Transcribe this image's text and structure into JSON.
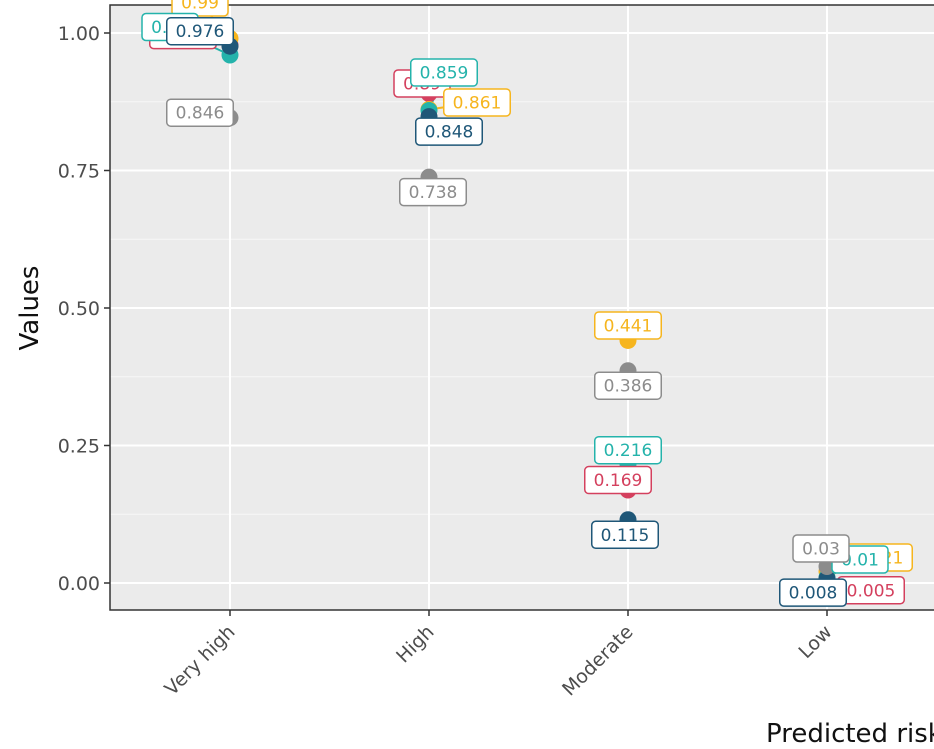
{
  "chart_data": {
    "type": "scatter",
    "xlabel": "Predicted risk",
    "ylabel": "Values",
    "categories": [
      "Very high",
      "High",
      "Moderate",
      "Low"
    ],
    "ylim": [
      -0.05,
      1.05
    ],
    "yticks": [
      "0.00",
      "0.25",
      "0.50",
      "0.75",
      "1.00"
    ],
    "yticks_values": [
      0,
      0.25,
      0.5,
      0.75,
      1
    ],
    "grid": true,
    "legend": "none",
    "series": [
      {
        "color": "#d4405e",
        "values": [
          0.978,
          0.89,
          0.169,
          0.005
        ],
        "labels": [
          "0.978",
          "0.89",
          "0.169",
          "0.005"
        ]
      },
      {
        "color": "#f6b51e",
        "values": [
          0.99,
          0.861,
          0.441,
          0.021
        ],
        "labels": [
          "0.99",
          "0.861",
          "0.441",
          "0.021"
        ]
      },
      {
        "color": "#24b3ab",
        "values": [
          0.96,
          0.859,
          0.216,
          0.01
        ],
        "labels": [
          "0.96",
          "0.859",
          "0.216",
          "0.01"
        ]
      },
      {
        "color": "#1f5778",
        "values": [
          0.976,
          0.848,
          0.115,
          0.008
        ],
        "labels": [
          "0.976",
          "0.848",
          "0.115",
          "0.008"
        ]
      },
      {
        "color": "#8c8c8c",
        "values": [
          0.846,
          0.738,
          0.386,
          0.03
        ],
        "labels": [
          "0.846",
          "0.738",
          "0.386",
          "0.03"
        ]
      }
    ]
  }
}
